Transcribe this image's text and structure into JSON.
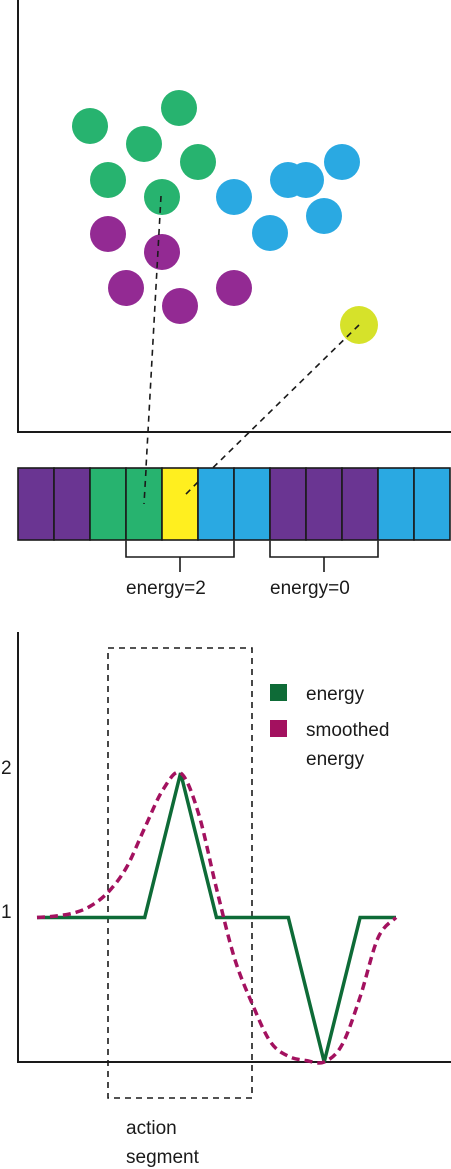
{
  "colors": {
    "green": "#27b36f",
    "blue": "#2aa9e2",
    "purple": "#932a93",
    "yellow_point": "#d6e22a",
    "dark_purple": "#6a3592",
    "yellow_cell": "#ffef1f",
    "energy_line": "#0e6b37",
    "smoothed_line": "#a3115f",
    "axis": "#1a1a1a"
  },
  "scatter": {
    "points": [
      {
        "cluster": "green"
      },
      {
        "cluster": "green"
      },
      {
        "cluster": "green"
      },
      {
        "cluster": "green"
      },
      {
        "cluster": "green"
      },
      {
        "cluster": "green"
      },
      {
        "cluster": "blue"
      },
      {
        "cluster": "blue"
      },
      {
        "cluster": "blue"
      },
      {
        "cluster": "blue"
      },
      {
        "cluster": "blue"
      },
      {
        "cluster": "blue"
      },
      {
        "cluster": "purple"
      },
      {
        "cluster": "purple"
      },
      {
        "cluster": "purple"
      },
      {
        "cluster": "purple"
      },
      {
        "cluster": "purple"
      },
      {
        "cluster": "yellow_point"
      }
    ]
  },
  "sequence": {
    "cells": [
      "dark_purple",
      "dark_purple",
      "green",
      "green",
      "yellow_cell",
      "blue",
      "blue",
      "dark_purple",
      "dark_purple",
      "dark_purple",
      "blue",
      "blue"
    ],
    "brackets": [
      {
        "label": "energy=2"
      },
      {
        "label": "energy=0"
      }
    ]
  },
  "chart": {
    "y_ticks": [
      "1",
      "2"
    ],
    "legend": [
      {
        "label": "energy",
        "color": "#0e6b37"
      },
      {
        "label": "smoothed",
        "label2": "energy",
        "color": "#a3115f"
      }
    ],
    "segment_label": [
      "action",
      "segment"
    ]
  },
  "chart_data": {
    "type": "line",
    "series": [
      {
        "name": "energy",
        "x": [
          0,
          3,
          4,
          5,
          7,
          8,
          9,
          10
        ],
        "values": [
          1,
          1,
          2,
          1,
          1,
          0,
          1,
          1
        ]
      },
      {
        "name": "smoothed energy",
        "x": [
          0,
          0.5,
          1,
          1.5,
          2,
          2.5,
          3,
          3.5,
          4,
          4.5,
          5,
          5.5,
          6,
          6.5,
          7,
          7.5,
          8,
          8.5,
          9,
          9.5,
          10
        ],
        "values": [
          1,
          1.01,
          1.03,
          1.08,
          1.18,
          1.35,
          1.62,
          1.88,
          2,
          1.72,
          1.2,
          0.72,
          0.4,
          0.14,
          0.04,
          0.01,
          0,
          0.12,
          0.45,
          0.86,
          1
        ]
      }
    ],
    "yticks": [
      "1",
      "2"
    ],
    "ylim": [
      0,
      2.6
    ],
    "action_segment_x": [
      2,
      6
    ]
  }
}
